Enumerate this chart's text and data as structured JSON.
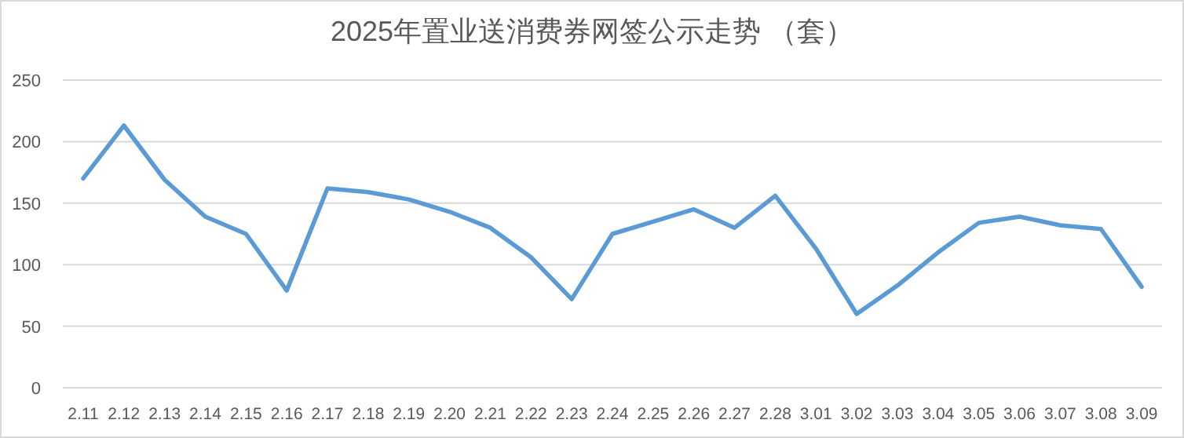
{
  "chart_data": {
    "type": "line",
    "title": "2025年置业送消费券网签公示走势 （套）",
    "categories": [
      "2.11",
      "2.12",
      "2.13",
      "2.14",
      "2.15",
      "2.16",
      "2.17",
      "2.18",
      "2.19",
      "2.20",
      "2.21",
      "2.22",
      "2.23",
      "2.24",
      "2.25",
      "2.26",
      "2.27",
      "2.28",
      "3.01",
      "3.02",
      "3.03",
      "3.04",
      "3.05",
      "3.06",
      "3.07",
      "3.08",
      "3.09"
    ],
    "series": [
      {
        "color": "#5b9bd5",
        "values": [
          170,
          213,
          169,
          139,
          125,
          79,
          162,
          159,
          153,
          143,
          130,
          106,
          72,
          125,
          135,
          145,
          130,
          156,
          113,
          60,
          83,
          110,
          134,
          139,
          132,
          129,
          82
        ]
      }
    ],
    "ylim": [
      0,
      250
    ],
    "yticks": [
      0,
      50,
      100,
      150,
      200,
      250
    ],
    "grid": "y",
    "marker": "none",
    "line_style": "solid"
  }
}
